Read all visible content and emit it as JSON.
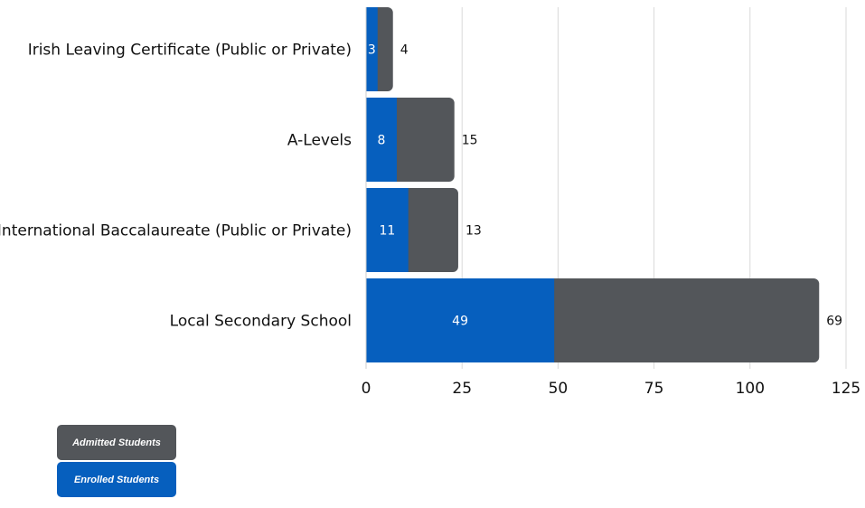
{
  "chart_data": {
    "type": "bar",
    "orientation": "horizontal",
    "stacked": true,
    "categories": [
      "Irish Leaving Certificate (Public or Private)",
      "A-Levels",
      "International Baccalaureate (Public or Private)",
      "Local Secondary School"
    ],
    "series": [
      {
        "name": "Enrolled Students",
        "values": [
          3,
          8,
          11,
          49
        ],
        "color": "#065fbe"
      },
      {
        "name": "Admitted Students",
        "values": [
          4,
          15,
          13,
          69
        ],
        "color": "#53565a"
      }
    ],
    "xlim": [
      0,
      125
    ],
    "xticks": [
      "0",
      "25",
      "50",
      "75",
      "100",
      "125"
    ],
    "grid": true,
    "legend_placement": "bottom-left"
  }
}
